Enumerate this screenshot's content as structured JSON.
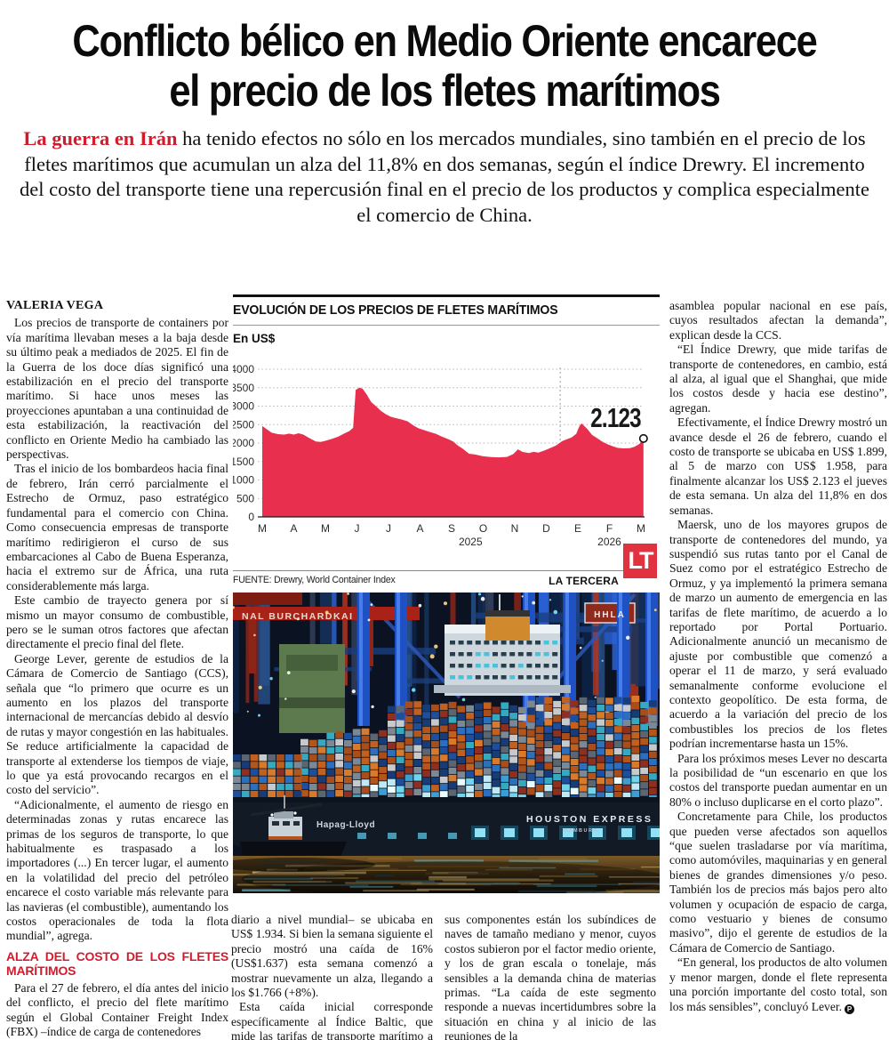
{
  "article": {
    "headline_line1": "Conflicto bélico en Medio Oriente encarece",
    "headline_line2": "el precio de los fletes marítimos",
    "lede_lead": "La guerra en Irán",
    "lede_rest": " ha tenido efectos no sólo en los mercados mundiales, sino también en el precio de los fletes marítimos que acumulan un alza del 11,8% en dos semanas, según el índice Drewry. El incremento del costo del transporte tiene una repercusión final en el precio de los productos y complica especialmente el comercio de China.",
    "byline": "VALERIA VEGA",
    "col1_paras": [
      "Los precios de transporte de containers por vía marítima llevaban meses a la baja desde su último peak a mediados de 2025. El fin de la Guerra de los doce días significó una estabilización en el precio del transporte marítimo. Si hace unos meses las proyecciones apuntaban a una continuidad de esta estabilización, la reactivación del conflicto en Oriente Medio ha cambiado las perspectivas.",
      "Tras el inicio de los bombardeos hacia final de febrero, Irán cerró parcialmente el Estrecho de Ormuz, paso estratégico fundamental para el comercio con China. Como consecuencia empresas de transporte marítimo redirigieron el curso de sus embarcaciones al Cabo de Buena Esperanza, hacia el extremo sur de África, una ruta considerablemente más larga.",
      "Este cambio de trayecto genera por sí mismo un mayor consumo de combustible, pero se le suman otros factores que afectan directamente el precio final del flete.",
      "George Lever, gerente de estudios de la Cámara de Comercio de Santiago (CCS), señala que “lo primero que ocurre es un aumento en los plazos del transporte internacional de mercancías debido al desvío de rutas y mayor congestión en las habituales. Se reduce artificialmente la capacidad de transporte al extenderse los tiempos de viaje, lo que ya está provocando recargos en el costo del servicio”.",
      "“Adicionalmente, el aumento de riesgo en determinadas zonas y rutas encarece las primas de los seguros de transporte, lo que habitualmente es traspasado a los importadores (...) En tercer lugar, el aumento en la volatilidad del precio del petróleo encarece el costo variable más relevante para las navieras (el combustible), aumentando los costos operacionales de toda la flota mundial”, agrega."
    ],
    "subhead": "ALZA DEL COSTO DE LOS FLETES MARÍTIMOS",
    "col1_paras_b": [
      "Para el 27 de febrero, el día antes del inicio del conflicto, el precio del flete marítimo según el Global Container Freight Index (FBX) –índice de carga de contenedores"
    ],
    "col2_paras": [
      "diario a nivel mundial– se ubicaba en US$ 1.934. Si bien la semana siguiente el precio mostró una caída de 16% (US$1.637) esta semana comenzó a mostrar nuevamente un alza, llegando a los $1.766 (+8%).",
      "Esta caída inicial corresponde específicamente al Índice Baltic, que mide las tarifas de transporte marítimo a granel, dentro de"
    ],
    "col3_paras": [
      "sus componentes están los subíndices de naves de tamaño mediano y menor, cuyos costos subieron por el factor medio oriente, y los de gran escala o tonelaje, más sensibles a la demanda china de materias primas. “La caída de este segmento responde a nuevas incertidumbres sobre la situación en china y al inicio de las reuniones de la"
    ],
    "col4_paras": [
      "asamblea popular nacional en ese país, cuyos resultados afectan la demanda”, explican desde la CCS.",
      "“El Índice Drewry, que mide tarifas de transporte de contenedores, en cambio, está al alza, al igual que el Shanghai, que mide los costos desde y hacia ese destino”, agregan.",
      "Efectivamente, el Índice Drewry mostró un avance desde el 26 de febrero, cuando el costo de transporte se ubicaba en US$ 1.899, al 5 de marzo con US$ 1.958, para finalmente alcanzar los US$ 2.123 el jueves de esta semana. Un alza del 11,8% en dos semanas.",
      "Maersk, uno de los mayores grupos de transporte de contenedores del mundo, ya suspendió sus rutas tanto por el Canal de Suez como por el estratégico Estrecho de Ormuz, y ya implementó la primera semana de marzo un aumento de emergencia en las tarifas de flete marítimo, de acuerdo a lo reportado por Portal Portuario. Adicionalmente anunció un mecanismo de ajuste por combustible que comenzó a operar el 11 de marzo, y será evaluado semanalmente conforme evolucione el contexto geopolítico. De esta forma, de acuerdo a la variación del precio de los combustibles los precios de los fletes podrían incrementarse hasta un 15%.",
      "Para los próximos meses Lever no descarta la posibilidad de “un escenario en que los costos del transporte puedan aumentar en un 80% o incluso duplicarse en el corto plazo”.",
      "Concretamente para Chile, los productos que pueden verse afectados son aquellos “que suelen trasladarse por vía marítima, como automóviles, maquinarias y en general bienes de grandes dimensiones y/o peso. También los de precios más bajos pero alto volumen y ocupación de espacio de carga, como vestuario y bienes de consumo masivo”, dijo el gerente de estudios de la Cámara de Comercio de Santiago.",
      "“En general, los productos de alto volumen y menor margen, donde el flete representa una porción importante del costo total, son los más sensibles”, concluyó Lever."
    ],
    "end_mark": "P"
  },
  "brand": {
    "logo_text": "LT"
  },
  "colors": {
    "accent_red": "#d31b2d",
    "chart_red": "#e8304e",
    "logo_red": "#e0333f"
  },
  "chart_data": {
    "type": "area",
    "title": "EVOLUCIÓN DE LOS PRECIOS DE FLETES MARÍTIMOS",
    "unit_label": "En US$",
    "xlabel": "",
    "ylabel": "US$",
    "ylim": [
      0,
      4000
    ],
    "ytick_step": 500,
    "grid": "dotted-horizontal",
    "x_tick_labels": [
      "M",
      "A",
      "M",
      "J",
      "J",
      "A",
      "S",
      "O",
      "N",
      "D",
      "E",
      "F",
      "M"
    ],
    "year_labels": [
      {
        "text": "2025",
        "month_index": 6.6
      },
      {
        "text": "2026",
        "month_index": 11.0
      }
    ],
    "year_divider_month_index": 9.44,
    "end_label": "2.123",
    "end_value": 2123,
    "source": "FUENTE: Drewry, World Container Index",
    "brand": "LA TERCERA",
    "series": [
      {
        "name": "Drewry World Container Index",
        "color": "#e8304e",
        "points": [
          [
            0,
            2460
          ],
          [
            0.15,
            2370
          ],
          [
            0.3,
            2280
          ],
          [
            0.5,
            2240
          ],
          [
            0.7,
            2230
          ],
          [
            0.85,
            2255
          ],
          [
            1,
            2230
          ],
          [
            1.15,
            2265
          ],
          [
            1.3,
            2230
          ],
          [
            1.5,
            2130
          ],
          [
            1.7,
            2040
          ],
          [
            1.85,
            2030
          ],
          [
            2,
            2060
          ],
          [
            2.2,
            2110
          ],
          [
            2.4,
            2170
          ],
          [
            2.6,
            2260
          ],
          [
            2.75,
            2320
          ],
          [
            2.88,
            2410
          ],
          [
            2.96,
            3440
          ],
          [
            3.08,
            3500
          ],
          [
            3.18,
            3470
          ],
          [
            3.3,
            3330
          ],
          [
            3.45,
            3110
          ],
          [
            3.6,
            3000
          ],
          [
            3.75,
            2880
          ],
          [
            3.9,
            2790
          ],
          [
            4.05,
            2720
          ],
          [
            4.2,
            2680
          ],
          [
            4.4,
            2640
          ],
          [
            4.6,
            2590
          ],
          [
            4.8,
            2470
          ],
          [
            4.95,
            2400
          ],
          [
            5.1,
            2360
          ],
          [
            5.3,
            2300
          ],
          [
            5.5,
            2250
          ],
          [
            5.7,
            2170
          ],
          [
            5.9,
            2100
          ],
          [
            6.05,
            2040
          ],
          [
            6.2,
            1930
          ],
          [
            6.35,
            1850
          ],
          [
            6.55,
            1710
          ],
          [
            6.75,
            1690
          ],
          [
            7,
            1640
          ],
          [
            7.25,
            1620
          ],
          [
            7.5,
            1612
          ],
          [
            7.75,
            1625
          ],
          [
            7.95,
            1700
          ],
          [
            8.1,
            1830
          ],
          [
            8.25,
            1760
          ],
          [
            8.45,
            1730
          ],
          [
            8.6,
            1762
          ],
          [
            8.75,
            1740
          ],
          [
            8.95,
            1800
          ],
          [
            9.1,
            1856
          ],
          [
            9.3,
            1930
          ],
          [
            9.5,
            2050
          ],
          [
            9.65,
            2100
          ],
          [
            9.8,
            2150
          ],
          [
            9.95,
            2250
          ],
          [
            10.05,
            2460
          ],
          [
            10.12,
            2530
          ],
          [
            10.3,
            2380
          ],
          [
            10.45,
            2220
          ],
          [
            10.6,
            2140
          ],
          [
            10.75,
            2050
          ],
          [
            10.9,
            1980
          ],
          [
            11.05,
            1930
          ],
          [
            11.25,
            1870
          ],
          [
            11.45,
            1855
          ],
          [
            11.65,
            1860
          ],
          [
            11.8,
            1900
          ],
          [
            11.95,
            1975
          ],
          [
            12.08,
            2123
          ]
        ]
      }
    ]
  },
  "photo": {
    "terminal_sign": "NAL BURCHARDKAI",
    "hhla_sign": "HHLA",
    "hull_brand": "Hapag-Lloyd",
    "ship_name": "HOUSTON EXPRESS",
    "ship_home_port": "HAMBURG"
  }
}
